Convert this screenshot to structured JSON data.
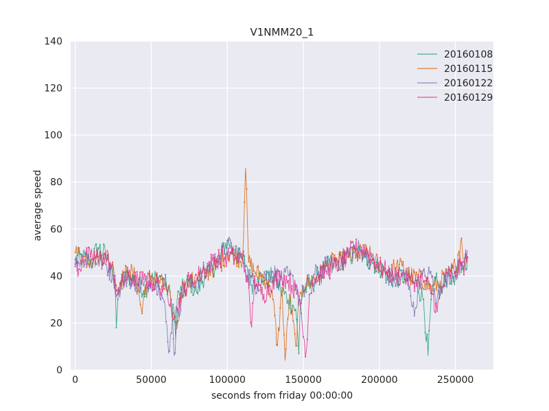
{
  "chart_data": {
    "type": "line",
    "title": "V1NMM20_1",
    "xlabel": "seconds from friday 00:00:00",
    "ylabel": "average speed",
    "xlim": [
      -3000,
      275000
    ],
    "ylim": [
      0,
      140
    ],
    "xticks": [
      0,
      50000,
      100000,
      150000,
      200000,
      250000
    ],
    "yticks": [
      0,
      20,
      40,
      60,
      80,
      100,
      120,
      140
    ],
    "xtick_labels": [
      "0",
      "50000",
      "100000",
      "150000",
      "200000",
      "250000"
    ],
    "ytick_labels": [
      "0",
      "20",
      "40",
      "60",
      "80",
      "100",
      "120",
      "140"
    ],
    "grid": true,
    "legend_position": "top-right",
    "background": "#eaeaf2",
    "series": [
      {
        "name": "20160108",
        "color": "#1b9e77",
        "anchors": [
          [
            0,
            47
          ],
          [
            5000,
            48
          ],
          [
            10000,
            46
          ],
          [
            15000,
            52
          ],
          [
            20000,
            49
          ],
          [
            24000,
            44
          ],
          [
            26000,
            36
          ],
          [
            27000,
            18
          ],
          [
            28000,
            30
          ],
          [
            30000,
            38
          ],
          [
            35000,
            40
          ],
          [
            40000,
            38
          ],
          [
            45000,
            34
          ],
          [
            50000,
            38
          ],
          [
            55000,
            40
          ],
          [
            60000,
            36
          ],
          [
            63000,
            30
          ],
          [
            65000,
            25
          ],
          [
            66000,
            13
          ],
          [
            67000,
            30
          ],
          [
            70000,
            34
          ],
          [
            75000,
            38
          ],
          [
            80000,
            33
          ],
          [
            85000,
            40
          ],
          [
            90000,
            43
          ],
          [
            95000,
            48
          ],
          [
            100000,
            55
          ],
          [
            105000,
            50
          ],
          [
            108000,
            47
          ],
          [
            110000,
            47
          ],
          [
            113000,
            44
          ],
          [
            116000,
            36
          ],
          [
            120000,
            40
          ],
          [
            125000,
            38
          ],
          [
            130000,
            40
          ],
          [
            135000,
            34
          ],
          [
            140000,
            30
          ],
          [
            145000,
            26
          ],
          [
            147000,
            7
          ],
          [
            148000,
            28
          ],
          [
            150000,
            34
          ],
          [
            155000,
            36
          ],
          [
            160000,
            40
          ],
          [
            165000,
            44
          ],
          [
            170000,
            45
          ],
          [
            175000,
            47
          ],
          [
            180000,
            48
          ],
          [
            185000,
            50
          ],
          [
            190000,
            48
          ],
          [
            195000,
            46
          ],
          [
            200000,
            44
          ],
          [
            205000,
            40
          ],
          [
            210000,
            38
          ],
          [
            215000,
            40
          ],
          [
            220000,
            38
          ],
          [
            225000,
            36
          ],
          [
            229000,
            30
          ],
          [
            232000,
            6
          ],
          [
            234000,
            30
          ],
          [
            237000,
            38
          ],
          [
            240000,
            32
          ],
          [
            245000,
            40
          ],
          [
            250000,
            40
          ],
          [
            255000,
            44
          ],
          [
            258000,
            48
          ]
        ]
      },
      {
        "name": "20160115",
        "color": "#d95f02",
        "anchors": [
          [
            0,
            50
          ],
          [
            5000,
            48
          ],
          [
            10000,
            47
          ],
          [
            15000,
            48
          ],
          [
            20000,
            49
          ],
          [
            24000,
            45
          ],
          [
            28000,
            34
          ],
          [
            30000,
            38
          ],
          [
            35000,
            42
          ],
          [
            40000,
            39
          ],
          [
            44000,
            24
          ],
          [
            46000,
            36
          ],
          [
            50000,
            40
          ],
          [
            55000,
            38
          ],
          [
            60000,
            34
          ],
          [
            63000,
            28
          ],
          [
            65000,
            22
          ],
          [
            67000,
            18
          ],
          [
            70000,
            34
          ],
          [
            75000,
            37
          ],
          [
            80000,
            39
          ],
          [
            85000,
            41
          ],
          [
            90000,
            43
          ],
          [
            95000,
            45
          ],
          [
            100000,
            50
          ],
          [
            105000,
            49
          ],
          [
            110000,
            47
          ],
          [
            112000,
            86
          ],
          [
            114000,
            46
          ],
          [
            118000,
            42
          ],
          [
            122000,
            40
          ],
          [
            126000,
            38
          ],
          [
            130000,
            30
          ],
          [
            133000,
            10
          ],
          [
            136000,
            35
          ],
          [
            138000,
            4
          ],
          [
            141000,
            32
          ],
          [
            145000,
            10
          ],
          [
            148000,
            33
          ],
          [
            150000,
            36
          ],
          [
            155000,
            38
          ],
          [
            160000,
            40
          ],
          [
            165000,
            44
          ],
          [
            170000,
            46
          ],
          [
            175000,
            46
          ],
          [
            180000,
            48
          ],
          [
            185000,
            49
          ],
          [
            190000,
            50
          ],
          [
            195000,
            48
          ],
          [
            200000,
            44
          ],
          [
            205000,
            42
          ],
          [
            210000,
            43
          ],
          [
            215000,
            44
          ],
          [
            220000,
            40
          ],
          [
            225000,
            39
          ],
          [
            230000,
            38
          ],
          [
            235000,
            34
          ],
          [
            240000,
            38
          ],
          [
            245000,
            40
          ],
          [
            250000,
            44
          ],
          [
            254000,
            56
          ],
          [
            256000,
            46
          ],
          [
            258000,
            48
          ]
        ]
      },
      {
        "name": "20160122",
        "color": "#7570b3",
        "anchors": [
          [
            0,
            45
          ],
          [
            5000,
            48
          ],
          [
            10000,
            46
          ],
          [
            15000,
            47
          ],
          [
            20000,
            45
          ],
          [
            25000,
            40
          ],
          [
            28000,
            32
          ],
          [
            30000,
            36
          ],
          [
            35000,
            40
          ],
          [
            40000,
            36
          ],
          [
            45000,
            36
          ],
          [
            50000,
            38
          ],
          [
            55000,
            36
          ],
          [
            58000,
            30
          ],
          [
            62000,
            8
          ],
          [
            64000,
            24
          ],
          [
            65000,
            6
          ],
          [
            67000,
            20
          ],
          [
            70000,
            32
          ],
          [
            75000,
            36
          ],
          [
            80000,
            38
          ],
          [
            85000,
            42
          ],
          [
            90000,
            45
          ],
          [
            95000,
            48
          ],
          [
            100000,
            53
          ],
          [
            105000,
            51
          ],
          [
            110000,
            48
          ],
          [
            115000,
            38
          ],
          [
            120000,
            36
          ],
          [
            125000,
            40
          ],
          [
            130000,
            42
          ],
          [
            135000,
            38
          ],
          [
            140000,
            40
          ],
          [
            145000,
            36
          ],
          [
            148000,
            28
          ],
          [
            150000,
            34
          ],
          [
            155000,
            38
          ],
          [
            160000,
            42
          ],
          [
            165000,
            44
          ],
          [
            170000,
            45
          ],
          [
            175000,
            47
          ],
          [
            180000,
            50
          ],
          [
            185000,
            52
          ],
          [
            190000,
            50
          ],
          [
            195000,
            46
          ],
          [
            200000,
            42
          ],
          [
            205000,
            40
          ],
          [
            210000,
            38
          ],
          [
            215000,
            40
          ],
          [
            220000,
            36
          ],
          [
            223000,
            23
          ],
          [
            226000,
            38
          ],
          [
            230000,
            40
          ],
          [
            235000,
            40
          ],
          [
            237000,
            27
          ],
          [
            240000,
            36
          ],
          [
            245000,
            40
          ],
          [
            250000,
            42
          ],
          [
            255000,
            44
          ],
          [
            258000,
            51
          ]
        ]
      },
      {
        "name": "20160129",
        "color": "#e7298a",
        "anchors": [
          [
            0,
            44
          ],
          [
            3000,
            43
          ],
          [
            5000,
            48
          ],
          [
            10000,
            48
          ],
          [
            15000,
            48
          ],
          [
            20000,
            48
          ],
          [
            24000,
            44
          ],
          [
            27000,
            34
          ],
          [
            30000,
            36
          ],
          [
            35000,
            40
          ],
          [
            40000,
            38
          ],
          [
            45000,
            38
          ],
          [
            50000,
            38
          ],
          [
            55000,
            36
          ],
          [
            60000,
            34
          ],
          [
            63000,
            30
          ],
          [
            65000,
            22
          ],
          [
            67000,
            26
          ],
          [
            70000,
            33
          ],
          [
            75000,
            38
          ],
          [
            80000,
            40
          ],
          [
            85000,
            42
          ],
          [
            90000,
            46
          ],
          [
            95000,
            48
          ],
          [
            100000,
            48
          ],
          [
            105000,
            48
          ],
          [
            110000,
            47
          ],
          [
            113000,
            40
          ],
          [
            116000,
            18
          ],
          [
            118000,
            40
          ],
          [
            120000,
            34
          ],
          [
            124000,
            32
          ],
          [
            128000,
            36
          ],
          [
            130000,
            38
          ],
          [
            135000,
            40
          ],
          [
            140000,
            38
          ],
          [
            145000,
            34
          ],
          [
            148000,
            30
          ],
          [
            150000,
            14
          ],
          [
            152000,
            8
          ],
          [
            154000,
            32
          ],
          [
            156000,
            38
          ],
          [
            160000,
            40
          ],
          [
            165000,
            42
          ],
          [
            170000,
            44
          ],
          [
            175000,
            46
          ],
          [
            180000,
            48
          ],
          [
            183000,
            54
          ],
          [
            186000,
            50
          ],
          [
            190000,
            52
          ],
          [
            195000,
            48
          ],
          [
            200000,
            44
          ],
          [
            205000,
            42
          ],
          [
            210000,
            40
          ],
          [
            215000,
            40
          ],
          [
            220000,
            38
          ],
          [
            225000,
            38
          ],
          [
            230000,
            38
          ],
          [
            235000,
            32
          ],
          [
            238000,
            25
          ],
          [
            240000,
            32
          ],
          [
            245000,
            40
          ],
          [
            250000,
            42
          ],
          [
            255000,
            44
          ],
          [
            258000,
            48
          ]
        ]
      }
    ]
  }
}
